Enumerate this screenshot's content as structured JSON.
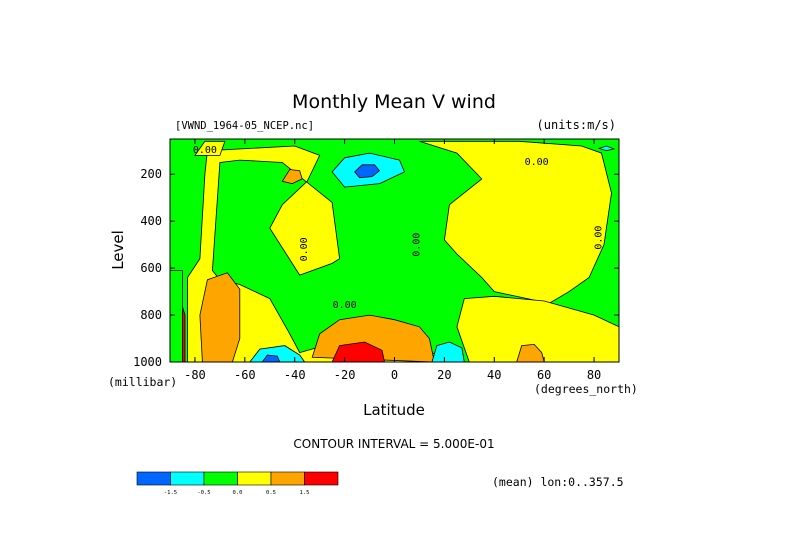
{
  "chart_data": {
    "type": "contour",
    "title": "Monthly Mean V wind",
    "dataset_label": "[VWND_1964-05_NCEP.nc]",
    "units_label": "(units:m/s)",
    "xlabel": "Latitude",
    "x_unit_label": "(degrees_north)",
    "ylabel": "Level",
    "y_unit_label": "(millibar)",
    "xlim": [
      -90,
      90
    ],
    "ylim": [
      1000,
      50
    ],
    "y_reversed": true,
    "x_ticks": [
      -80,
      -60,
      -40,
      -20,
      0,
      20,
      40,
      60,
      80
    ],
    "y_ticks": [
      200,
      400,
      600,
      800,
      1000
    ],
    "contour_interval_text": "CONTOUR INTERVAL = 5.000E-01",
    "contour_labels": [
      {
        "text": "0.00",
        "lat": -76,
        "lev": 110
      },
      {
        "text": "0.00",
        "lat": 57,
        "lev": 160
      },
      {
        "text": "0.00",
        "lat": -35,
        "lev": 520
      },
      {
        "text": "0.00",
        "lat": 10,
        "lev": 500
      },
      {
        "text": "0.00",
        "lat": 83,
        "lev": 470
      },
      {
        "text": "0.00",
        "lat": -20,
        "lev": 770
      }
    ],
    "regions": [
      {
        "bin": "-1.0..-0.5",
        "color": "#00ffff",
        "points": [
          [
            -25,
            190
          ],
          [
            -20,
            130
          ],
          [
            -10,
            110
          ],
          [
            2,
            140
          ],
          [
            4,
            190
          ],
          [
            -6,
            240
          ],
          [
            -20,
            255
          ]
        ]
      },
      {
        "bin": "<-1.5",
        "color": "#0066ff",
        "points": [
          [
            -16,
            190
          ],
          [
            -13,
            160
          ],
          [
            -8,
            160
          ],
          [
            -6,
            185
          ],
          [
            -9,
            210
          ],
          [
            -14,
            215
          ]
        ]
      },
      {
        "bin": "0.0..0.5",
        "color": "#ffff00",
        "points": [
          [
            -75,
            100
          ],
          [
            -40,
            80
          ],
          [
            -30,
            120
          ],
          [
            -35,
            230
          ],
          [
            -45,
            330
          ],
          [
            -50,
            430
          ],
          [
            -38,
            630
          ],
          [
            -25,
            580
          ],
          [
            -22,
            560
          ],
          [
            -25,
            320
          ],
          [
            -45,
            150
          ],
          [
            -62,
            140
          ],
          [
            -70,
            150
          ],
          [
            -73,
            610
          ],
          [
            -70,
            650
          ],
          [
            -62,
            670
          ],
          [
            -50,
            730
          ],
          [
            -42,
            880
          ],
          [
            -38,
            960
          ],
          [
            -25,
            920
          ],
          [
            -10,
            870
          ],
          [
            5,
            850
          ],
          [
            12,
            900
          ],
          [
            15,
            960
          ],
          [
            22,
            1000
          ],
          [
            -83,
            1000
          ],
          [
            -83,
            640
          ],
          [
            -78,
            560
          ],
          [
            -76,
            200
          ]
        ]
      },
      {
        "bin": "0.0..0.5",
        "color": "#ffff00",
        "points": [
          [
            10,
            60
          ],
          [
            25,
            110
          ],
          [
            35,
            220
          ],
          [
            22,
            330
          ],
          [
            20,
            480
          ],
          [
            25,
            540
          ],
          [
            35,
            640
          ],
          [
            40,
            700
          ],
          [
            62,
            750
          ],
          [
            70,
            700
          ],
          [
            78,
            640
          ],
          [
            84,
            500
          ],
          [
            87,
            280
          ],
          [
            83,
            110
          ],
          [
            75,
            80
          ],
          [
            50,
            60
          ]
        ]
      },
      {
        "bin": "0.0..0.5",
        "color": "#ffff00",
        "points": [
          [
            28,
            730
          ],
          [
            40,
            720
          ],
          [
            60,
            740
          ],
          [
            80,
            800
          ],
          [
            90,
            850
          ],
          [
            90,
            1000
          ],
          [
            30,
            1000
          ],
          [
            25,
            850
          ]
        ]
      },
      {
        "bin": "0.0..0.5",
        "color": "#ffff00",
        "points": [
          [
            -80,
            120
          ],
          [
            -76,
            60
          ],
          [
            -68,
            60
          ],
          [
            -70,
            120
          ]
        ]
      },
      {
        "bin": "0.5..1.0",
        "color": "#ffa500",
        "points": [
          [
            -75,
            650
          ],
          [
            -67,
            620
          ],
          [
            -62,
            690
          ],
          [
            -62,
            900
          ],
          [
            -65,
            1000
          ],
          [
            -77,
            1000
          ],
          [
            -78,
            800
          ]
        ]
      },
      {
        "bin": "0.5..1.0",
        "color": "#ffa500",
        "points": [
          [
            -42,
            180
          ],
          [
            -38,
            185
          ],
          [
            -37,
            220
          ],
          [
            -41,
            240
          ],
          [
            -45,
            230
          ]
        ]
      },
      {
        "bin": "0.5..1.0",
        "color": "#ffa500",
        "points": [
          [
            -33,
            980
          ],
          [
            -30,
            880
          ],
          [
            -22,
            820
          ],
          [
            -10,
            800
          ],
          [
            0,
            820
          ],
          [
            10,
            850
          ],
          [
            14,
            900
          ],
          [
            16,
            1000
          ]
        ]
      },
      {
        "bin": "0.5..1.0",
        "color": "#ffa500",
        "points": [
          [
            49,
            1000
          ],
          [
            51,
            930
          ],
          [
            56,
            925
          ],
          [
            59,
            960
          ],
          [
            60,
            1000
          ]
        ]
      },
      {
        "bin": "1.0..1.5",
        "color": "#ff0000",
        "points": [
          [
            -25,
            1000
          ],
          [
            -22,
            930
          ],
          [
            -12,
            915
          ],
          [
            -5,
            950
          ],
          [
            -4,
            1000
          ]
        ]
      },
      {
        "bin": "1.0..1.5",
        "color": "#ff0000",
        "points": [
          [
            -90,
            750
          ],
          [
            -86,
            730
          ],
          [
            -84,
            800
          ],
          [
            -84,
            1000
          ],
          [
            -90,
            1000
          ]
        ]
      },
      {
        "bin": "-0.5..0.0",
        "color": "#00ff00",
        "points": [
          [
            -90,
            1000
          ],
          [
            -90,
            610
          ],
          [
            -85,
            610
          ],
          [
            -85,
            1000
          ]
        ]
      },
      {
        "bin": "-1.0..-0.5",
        "color": "#00ffff",
        "points": [
          [
            -58,
            1000
          ],
          [
            -54,
            945
          ],
          [
            -44,
            930
          ],
          [
            -38,
            970
          ],
          [
            -36,
            1000
          ]
        ]
      },
      {
        "bin": "<-1.5",
        "color": "#0066ff",
        "points": [
          [
            -53,
            1000
          ],
          [
            -51,
            970
          ],
          [
            -47,
            975
          ],
          [
            -46,
            1000
          ]
        ]
      },
      {
        "bin": "-1.0..-0.5",
        "color": "#00ffff",
        "points": [
          [
            15,
            1000
          ],
          [
            17,
            930
          ],
          [
            22,
            915
          ],
          [
            27,
            940
          ],
          [
            28,
            1000
          ]
        ]
      },
      {
        "bin": "-1.0..-0.5",
        "color": "#00ffff",
        "points": [
          [
            82,
            90
          ],
          [
            85,
            80
          ],
          [
            88,
            92
          ],
          [
            85,
            100
          ]
        ]
      }
    ],
    "colorbar": {
      "colors": [
        "#0066ff",
        "#00ffff",
        "#00ff00",
        "#ffff00",
        "#ffa500",
        "#ff0000"
      ],
      "labels": [
        "-1.5",
        "-0.5",
        "0.0",
        "0.5",
        "1.5"
      ]
    },
    "mean_note": "(mean) lon:0..357.5"
  }
}
